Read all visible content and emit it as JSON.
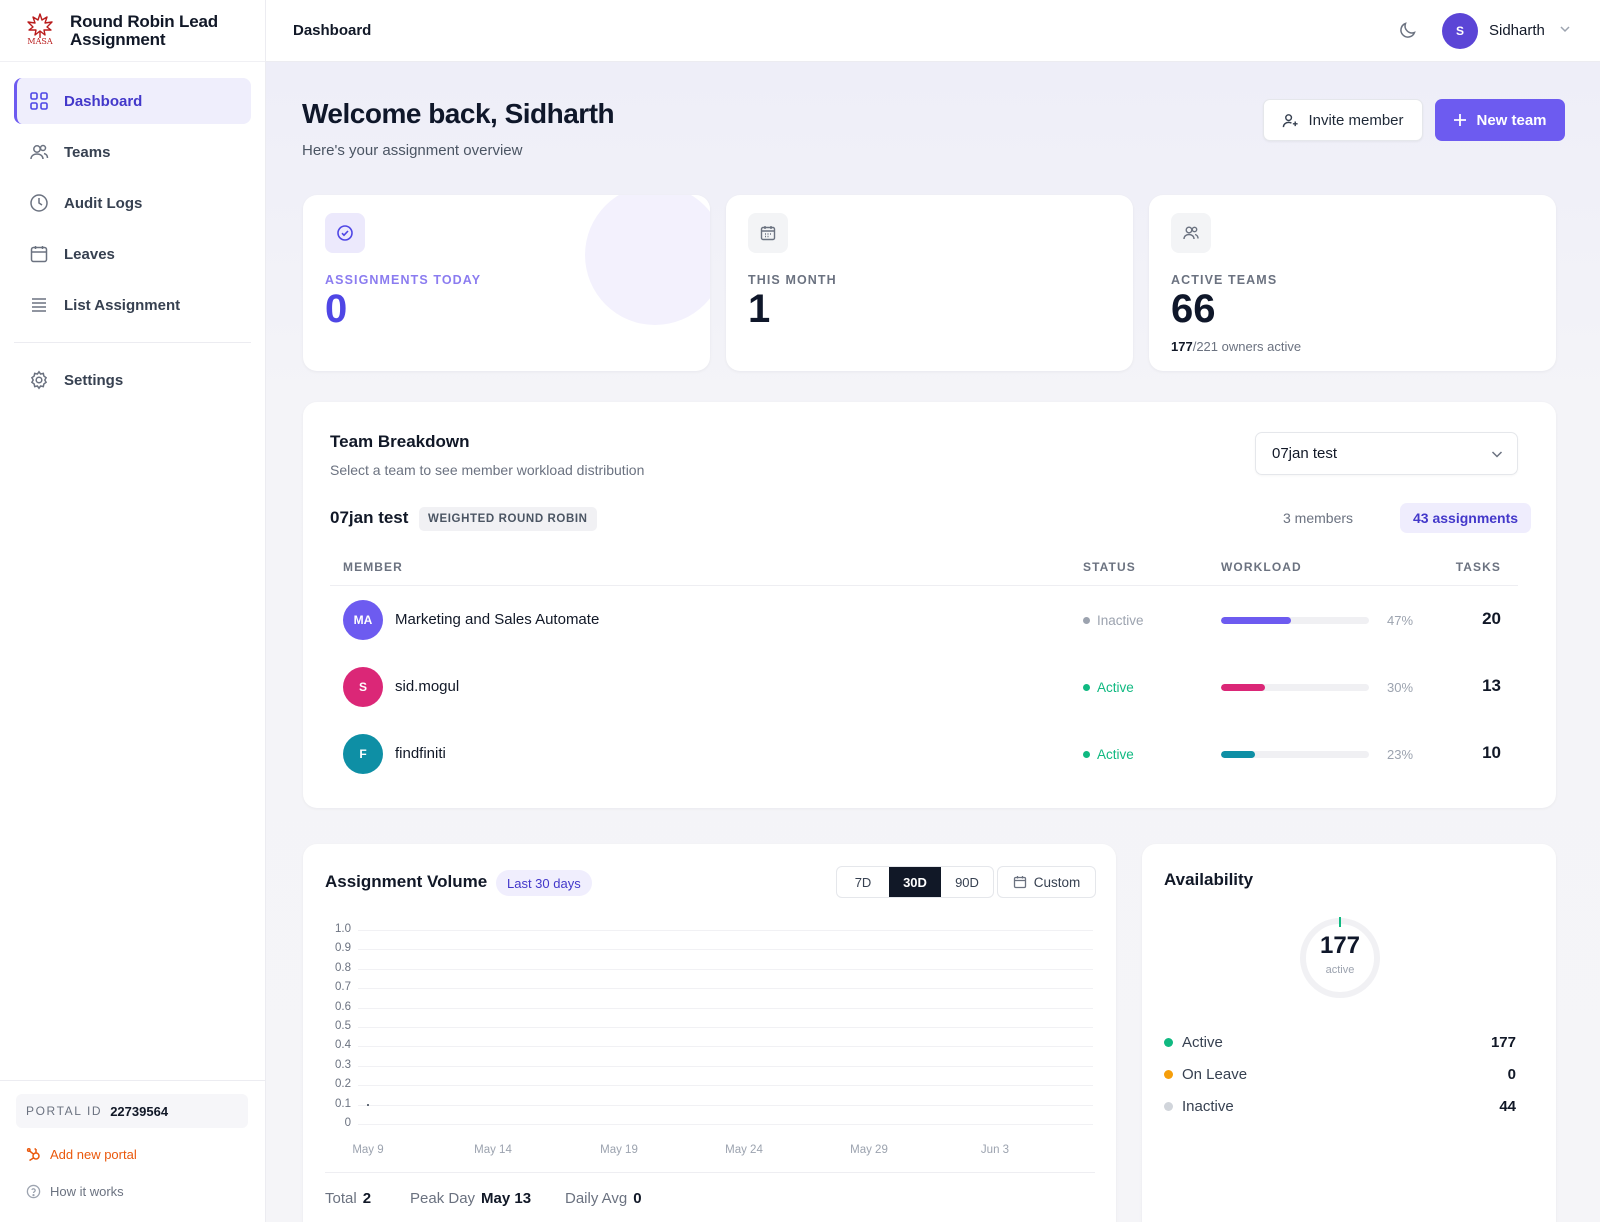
{
  "brand": {
    "title_line1": "Round Robin Lead",
    "title_line2": "Assignment",
    "logo_text": "MASA"
  },
  "sidebar": {
    "items": [
      {
        "label": "Dashboard",
        "icon": "grid-icon",
        "active": true
      },
      {
        "label": "Teams",
        "icon": "users-icon"
      },
      {
        "label": "Audit Logs",
        "icon": "clock-icon"
      },
      {
        "label": "Leaves",
        "icon": "calendar-icon"
      },
      {
        "label": "List Assignment",
        "icon": "list-icon"
      }
    ],
    "settings_label": "Settings",
    "portal_label": "PORTAL ID",
    "portal_id": "22739564",
    "add_portal": "Add new portal",
    "how_it_works": "How it works"
  },
  "topbar": {
    "breadcrumb": "Dashboard",
    "user_initial": "S",
    "user_name": "Sidharth"
  },
  "header": {
    "welcome": "Welcome back, Sidharth",
    "subtitle": "Here's your assignment overview",
    "invite_label": "Invite member",
    "new_team_label": "New team"
  },
  "stats": [
    {
      "label": "ASSIGNMENTS TODAY",
      "value": "0",
      "icon": "check-circle-icon"
    },
    {
      "label": "THIS MONTH",
      "value": "1",
      "icon": "calendar-icon"
    },
    {
      "label": "ACTIVE TEAMS",
      "value": "66",
      "icon": "users-icon",
      "sub_active": "177",
      "sub_rest": "/221 owners active"
    }
  ],
  "team_breakdown": {
    "title": "Team Breakdown",
    "subtitle": "Select a team to see member workload distribution",
    "selected_team": "07jan test",
    "team_name": "07jan test",
    "mode_badge": "WEIGHTED ROUND ROBIN",
    "members_count": "3 members",
    "assignments_count": "43 assignments",
    "columns": {
      "member": "MEMBER",
      "status": "STATUS",
      "workload": "WORKLOAD",
      "tasks": "TASKS"
    },
    "rows": [
      {
        "initials": "MA",
        "name": "Marketing and Sales Automate",
        "status": "Inactive",
        "workload_pct": 47,
        "workload_label": "47%",
        "tasks": "20",
        "color": "#6d5bf0",
        "status_color": "#9ca3af"
      },
      {
        "initials": "S",
        "name": "sid.mogul",
        "status": "Active",
        "workload_pct": 30,
        "workload_label": "30%",
        "tasks": "13",
        "color": "#db2777",
        "status_color": "#10b981"
      },
      {
        "initials": "F",
        "name": "findfiniti",
        "status": "Active",
        "workload_pct": 23,
        "workload_label": "23%",
        "tasks": "10",
        "color": "#0e8fa5",
        "status_color": "#10b981"
      }
    ]
  },
  "volume": {
    "title": "Assignment Volume",
    "range_badge": "Last 30 days",
    "ranges": [
      "7D",
      "30D",
      "90D"
    ],
    "selected_range": "30D",
    "custom_label": "Custom",
    "total_label": "Total",
    "total_value": "2",
    "peak_label": "Peak Day",
    "peak_value": "May 13",
    "avg_label": "Daily Avg",
    "avg_value": "0"
  },
  "chart_data": {
    "type": "line",
    "x_ticks": [
      "May 9",
      "May 14",
      "May 19",
      "May 24",
      "May 29",
      "Jun 3"
    ],
    "y_ticks": [
      "1.0",
      "0.9",
      "0.8",
      "0.7",
      "0.6",
      "0.5",
      "0.4",
      "0.3",
      "0.2",
      "0.1",
      "0"
    ],
    "ylim": [
      0,
      1
    ],
    "series": [
      {
        "values": [
          0.1
        ]
      }
    ],
    "grid": true
  },
  "availability": {
    "title": "Availability",
    "center_value": "177",
    "center_label": "active",
    "legend": [
      {
        "label": "Active",
        "value": "177",
        "color": "#10b981"
      },
      {
        "label": "On Leave",
        "value": "0",
        "color": "#f59e0b"
      },
      {
        "label": "Inactive",
        "value": "44",
        "color": "#d1d5db"
      }
    ]
  }
}
